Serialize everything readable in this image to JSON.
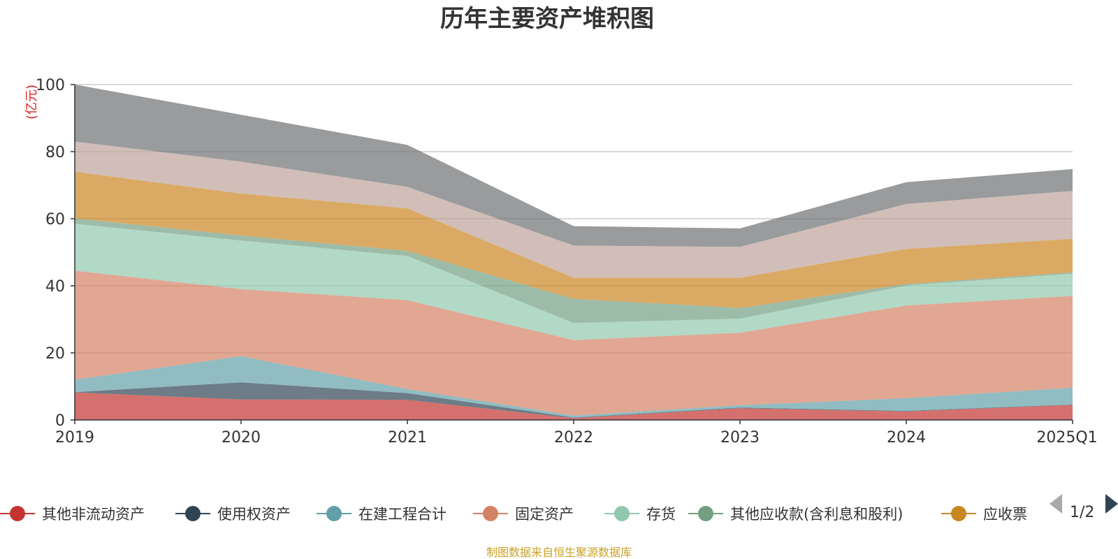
{
  "chart_data": {
    "type": "area",
    "title": "历年主要资产堆积图",
    "unit_label": "(亿元)",
    "x": [
      "2019",
      "2020",
      "2021",
      "2022",
      "2023",
      "2024",
      "2025Q1"
    ],
    "ylim": [
      0,
      100
    ],
    "yticks": [
      0,
      20,
      40,
      60,
      80,
      100
    ],
    "grid": true,
    "stacked": true,
    "series": [
      {
        "name": "其他非流动资产",
        "color": "#c23531",
        "values": [
          8.2,
          6.1,
          6.0,
          0.5,
          3.5,
          2.5,
          4.5
        ]
      },
      {
        "name": "使用权资产",
        "color": "#2f4554",
        "values": [
          0.1,
          5.1,
          2.0,
          0.2,
          0.2,
          0.2,
          0.1
        ]
      },
      {
        "name": "在建工程合计",
        "color": "#61a0a8",
        "values": [
          3.7,
          7.8,
          1.2,
          0.6,
          0.7,
          3.8,
          5.0
        ]
      },
      {
        "name": "固定资产",
        "color": "#d48265",
        "values": [
          32.5,
          20.0,
          26.5,
          22.5,
          21.6,
          27.6,
          27.4
        ]
      },
      {
        "name": "存货",
        "color": "#91c7ae",
        "values": [
          14.0,
          14.5,
          13.2,
          5.1,
          4.2,
          6.0,
          6.6
        ]
      },
      {
        "name": "其他应收款(含利息和股利)",
        "color": "#749f83",
        "values": [
          1.6,
          1.5,
          1.5,
          7.2,
          3.2,
          0.4,
          0.4
        ]
      },
      {
        "name": "应收票据及应收账款",
        "color": "#ca8622",
        "values": [
          13.9,
          12.5,
          12.7,
          6.3,
          9.0,
          10.5,
          10.0
        ]
      },
      {
        "name": "",
        "color": "#bda29a",
        "values": [
          9.0,
          9.5,
          6.4,
          9.6,
          9.2,
          13.4,
          14.3
        ]
      },
      {
        "name": "",
        "color": "#6e7074",
        "values": [
          17.0,
          14.0,
          12.5,
          5.8,
          5.5,
          6.5,
          6.5
        ]
      }
    ],
    "legend_position": "bottom",
    "legend_visible": [
      "其他非流动资产",
      "使用权资产",
      "在建工程合计",
      "固定资产",
      "存货",
      "其他应收款(含利息和股利)",
      "应收票"
    ]
  },
  "legend_pager": {
    "label": "1/2",
    "prev_icon": "triangle-left-icon",
    "next_icon": "triangle-right-icon"
  },
  "source": "制图数据来自恒生聚源数据库"
}
